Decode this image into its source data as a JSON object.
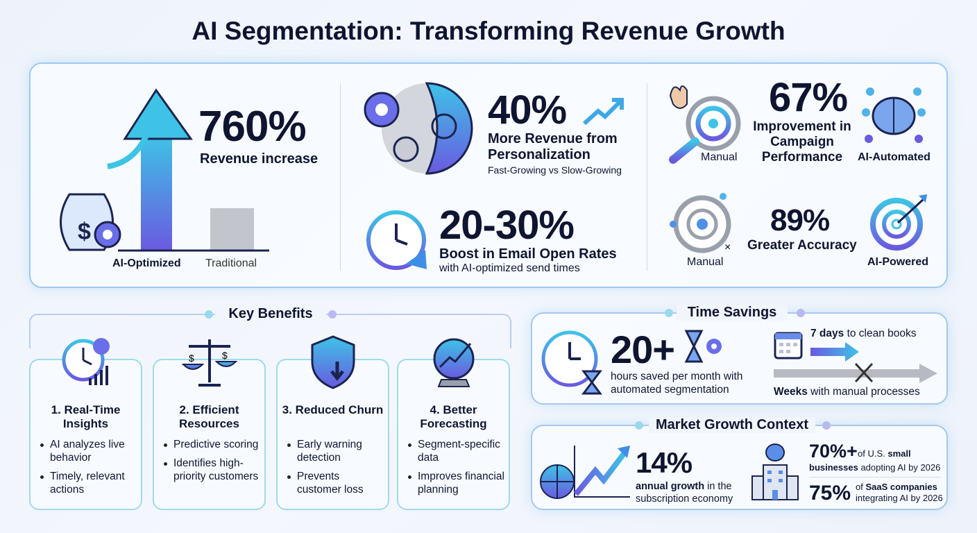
{
  "title": "AI Segmentation: Transforming Revenue Growth",
  "colors": {
    "cyan": "#3ec3e6",
    "purple": "#6a5ae0",
    "navy": "#0f1530",
    "gray": "#b7bac3"
  },
  "revenue": {
    "value": "760%",
    "label": "Revenue increase",
    "bar_labels": [
      "AI-Optimized",
      "Traditional"
    ]
  },
  "personalization": {
    "value": "40%",
    "label": "More Revenue from Personalization",
    "sub": "Fast-Growing vs Slow-Growing"
  },
  "email": {
    "value": "20-30%",
    "label": "Boost in Email Open Rates",
    "sub": "with AI-optimized send times"
  },
  "campaign": {
    "value": "67%",
    "label": "Improvement in Campaign Performance",
    "left": "Manual",
    "right": "AI-Automated"
  },
  "accuracy": {
    "value": "89%",
    "label": "Greater Accuracy",
    "left": "Manual",
    "right": "AI-Powered"
  },
  "benefits": {
    "heading": "Key Benefits",
    "cards": [
      {
        "title": "1. Real-Time Insights",
        "icon": "clock-chart-icon",
        "bullets": [
          "AI analyzes live behavior",
          "Timely, relevant actions"
        ]
      },
      {
        "title": "2. Efficient Resources",
        "icon": "scales-icon",
        "bullets": [
          "Predictive scoring",
          "Identifies high-priority customers"
        ]
      },
      {
        "title": "3. Reduced Churn",
        "icon": "shield-icon",
        "bullets": [
          "Early warning detection",
          "Prevents customer loss"
        ]
      },
      {
        "title": "4. Better Forecasting",
        "icon": "crystal-ball-icon",
        "bullets": [
          "Segment-specific data",
          "Improves financial planning"
        ]
      }
    ]
  },
  "time": {
    "heading": "Time Savings",
    "value": "20+",
    "sub": "hours saved per month with automated segmentation",
    "fast_bold": "7 days",
    "fast_rest": " to clean books",
    "slow_bold": "Weeks",
    "slow_rest": " with manual processes"
  },
  "market": {
    "heading": "Market Growth Context",
    "value": "14%",
    "sub_bold": "annual growth",
    "sub_rest": " in the subscription economy",
    "s1_value": "70%+",
    "s1_a": "of U.S. ",
    "s1_b": "small",
    "s1_c": "businesses",
    "s1_d": " adopting AI by 2026",
    "s2_value": "75%",
    "s2_a": "of ",
    "s2_b": "SaaS companies",
    "s2_c": "integrating AI by 2026"
  }
}
